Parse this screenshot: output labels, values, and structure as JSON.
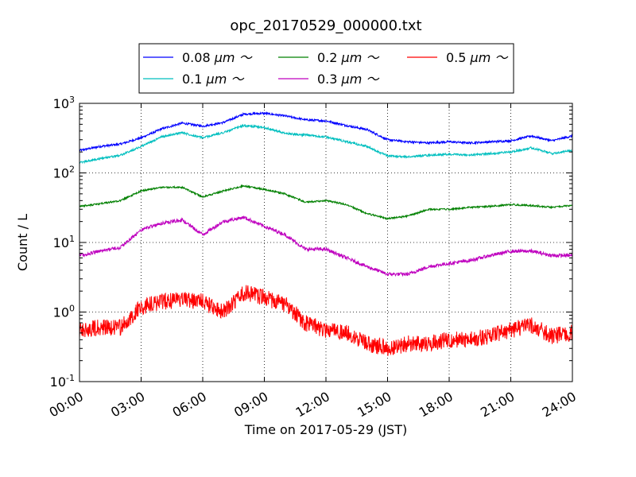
{
  "chart_data": {
    "type": "line",
    "title": "opc_20170529_000000.txt",
    "xlabel": "Time on 2017-05-29 (JST)",
    "ylabel": "Count / L",
    "yscale": "log",
    "ylim": [
      0.1,
      1000
    ],
    "xlim": [
      "00:00",
      "24:00"
    ],
    "grid": true,
    "legend_position": "top-center",
    "x_ticks": [
      "00:00",
      "03:00",
      "06:00",
      "09:00",
      "12:00",
      "15:00",
      "18:00",
      "21:00",
      "24:00"
    ],
    "x": [
      "00:00",
      "01:00",
      "02:00",
      "03:00",
      "04:00",
      "05:00",
      "06:00",
      "07:00",
      "08:00",
      "09:00",
      "10:00",
      "11:00",
      "12:00",
      "13:00",
      "14:00",
      "15:00",
      "16:00",
      "17:00",
      "18:00",
      "19:00",
      "20:00",
      "21:00",
      "22:00",
      "23:00",
      "24:00"
    ],
    "series": [
      {
        "name": "0.08",
        "unit": "μm ～",
        "color": "#0000ff",
        "values": [
          210,
          240,
          260,
          320,
          430,
          520,
          470,
          530,
          700,
          720,
          660,
          580,
          560,
          480,
          420,
          300,
          280,
          270,
          280,
          270,
          280,
          290,
          340,
          290,
          340
        ]
      },
      {
        "name": "0.1",
        "unit": "μm ～",
        "color": "#00bfbf",
        "values": [
          140,
          160,
          180,
          240,
          330,
          380,
          320,
          380,
          480,
          450,
          370,
          350,
          330,
          280,
          240,
          175,
          170,
          180,
          185,
          180,
          190,
          200,
          230,
          190,
          210
        ]
      },
      {
        "name": "0.2",
        "unit": "μm ～",
        "color": "#008000",
        "values": [
          33,
          36,
          40,
          55,
          62,
          62,
          45,
          55,
          65,
          58,
          50,
          38,
          40,
          35,
          26,
          22,
          24,
          30,
          30,
          32,
          33,
          35,
          34,
          32,
          34
        ]
      },
      {
        "name": "0.3",
        "unit": "μm ～",
        "color": "#bf00bf",
        "values": [
          6.5,
          7.5,
          8.5,
          15,
          19,
          21,
          13,
          20,
          23,
          17,
          13,
          8,
          8,
          6,
          4.5,
          3.5,
          3.5,
          4.5,
          5,
          5.5,
          6.5,
          7.5,
          7.5,
          6.5,
          6.5
        ]
      },
      {
        "name": "0.5",
        "unit": "μm ～",
        "color": "#ff0000",
        "values": [
          0.55,
          0.6,
          0.6,
          1.2,
          1.4,
          1.5,
          1.4,
          1.0,
          1.9,
          1.6,
          1.3,
          0.7,
          0.55,
          0.5,
          0.35,
          0.3,
          0.35,
          0.35,
          0.4,
          0.4,
          0.45,
          0.55,
          0.65,
          0.45,
          0.5
        ]
      }
    ]
  }
}
